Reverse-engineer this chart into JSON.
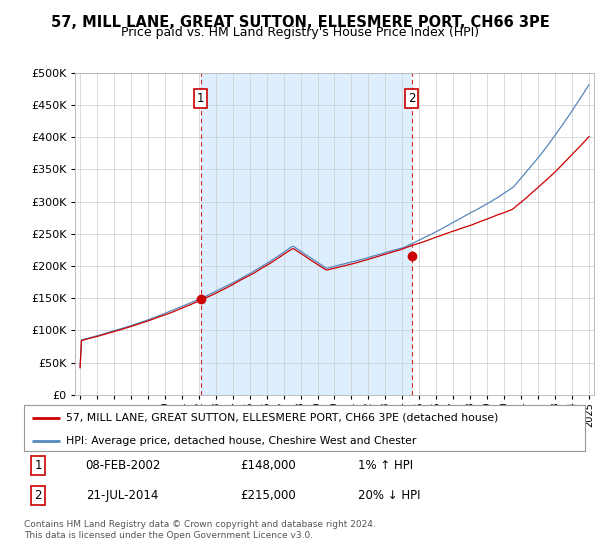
{
  "title": "57, MILL LANE, GREAT SUTTON, ELLESMERE PORT, CH66 3PE",
  "subtitle": "Price paid vs. HM Land Registry's House Price Index (HPI)",
  "legend_line1": "57, MILL LANE, GREAT SUTTON, ELLESMERE PORT, CH66 3PE (detached house)",
  "legend_line2": "HPI: Average price, detached house, Cheshire West and Chester",
  "sale1_date": "08-FEB-2002",
  "sale1_price": "£148,000",
  "sale1_hpi": "1% ↑ HPI",
  "sale2_date": "21-JUL-2014",
  "sale2_price": "£215,000",
  "sale2_hpi": "20% ↓ HPI",
  "footer": "Contains HM Land Registry data © Crown copyright and database right 2024.\nThis data is licensed under the Open Government Licence v3.0.",
  "sale1_year": 2002.1,
  "sale1_value": 148000,
  "sale2_year": 2014.55,
  "sale2_value": 215000,
  "hpi_color": "#5588bb",
  "price_color": "#cc0000",
  "sale_dot_color": "#cc0000",
  "vline_color": "#cc0000",
  "shade_color": "#ddeeff",
  "background_color": "#ffffff",
  "grid_color": "#cccccc",
  "ylim": [
    0,
    500000
  ],
  "yticks": [
    0,
    50000,
    100000,
    150000,
    200000,
    250000,
    300000,
    350000,
    400000,
    450000,
    500000
  ],
  "xlim_start": 1994.7,
  "xlim_end": 2025.3
}
